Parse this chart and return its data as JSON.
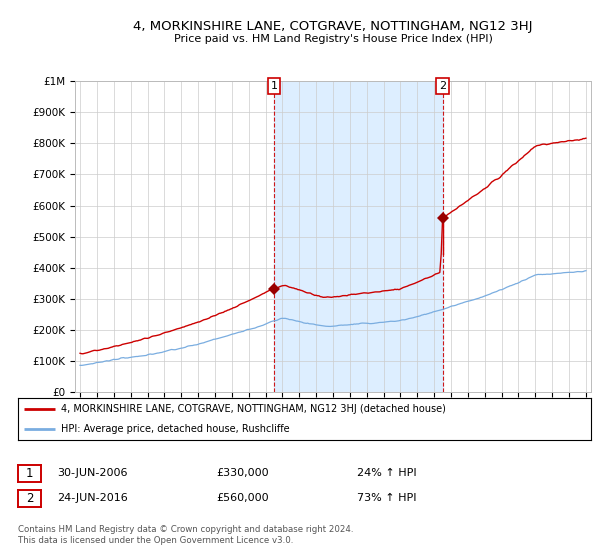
{
  "title": "4, MORKINSHIRE LANE, COTGRAVE, NOTTINGHAM, NG12 3HJ",
  "subtitle": "Price paid vs. HM Land Registry's House Price Index (HPI)",
  "legend_label_red": "4, MORKINSHIRE LANE, COTGRAVE, NOTTINGHAM, NG12 3HJ (detached house)",
  "legend_label_blue": "HPI: Average price, detached house, Rushcliffe",
  "sale1_date": "30-JUN-2006",
  "sale1_price": "£330,000",
  "sale1_hpi": "24% ↑ HPI",
  "sale2_date": "24-JUN-2016",
  "sale2_price": "£560,000",
  "sale2_hpi": "73% ↑ HPI",
  "footer": "Contains HM Land Registry data © Crown copyright and database right 2024.\nThis data is licensed under the Open Government Licence v3.0.",
  "sale1_year": 2006.5,
  "sale2_year": 2016.5,
  "sale1_value": 330000,
  "sale2_value": 560000,
  "red_color": "#cc0000",
  "blue_color": "#7aade0",
  "shade_color": "#ddeeff",
  "vline_color": "#cc0000",
  "dot_color": "#990000",
  "grid_color": "#cccccc",
  "ylim": [
    0,
    1000000
  ],
  "xlim_start": 1994.7,
  "xlim_end": 2025.3
}
